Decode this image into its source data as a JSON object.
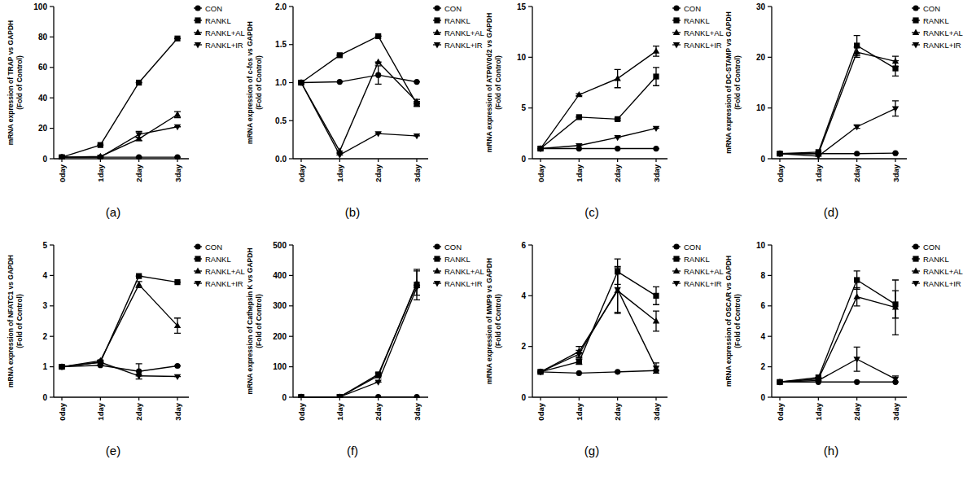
{
  "chart_data": [
    {
      "type": "line",
      "title": "(a)",
      "y_label": "mRNA expression of TRAP vs GAPDH",
      "y_sublabel": "(Fold of Control)",
      "categories": [
        "0day",
        "1day",
        "2day",
        "3day"
      ],
      "ylim": [
        0,
        100
      ],
      "yticks": [
        0,
        20,
        40,
        60,
        80,
        100
      ],
      "legend": "upper right",
      "series": [
        {
          "name": "CON",
          "color": "#000000",
          "marker": "circle",
          "values": [
            1,
            1,
            1,
            1
          ],
          "errors": [
            0,
            0,
            0,
            0
          ]
        },
        {
          "name": "RANKL",
          "color": "#000000",
          "marker": "square",
          "values": [
            1,
            9,
            50,
            79
          ],
          "errors": [
            0,
            0,
            0,
            0
          ]
        },
        {
          "name": "RANKL+AL",
          "color": "#000000",
          "marker": "triangle",
          "values": [
            1,
            1.5,
            13,
            29
          ],
          "errors": [
            0,
            0,
            1,
            2
          ]
        },
        {
          "name": "RANKL+IR",
          "color": "#000000",
          "marker": "triangle_down",
          "values": [
            1,
            1,
            16,
            21
          ],
          "errors": [
            0,
            0,
            2,
            0
          ]
        }
      ]
    },
    {
      "type": "line",
      "title": "(b)",
      "y_label": "mRNA expression of c-fos vs GAPDH",
      "y_sublabel": "(Fold of Control)",
      "categories": [
        "0day",
        "1day",
        "2day",
        "3day"
      ],
      "ylim": [
        0,
        2
      ],
      "yticks": [
        {
          "value": 0,
          "label": "0.0"
        },
        0.5,
        {
          "value": 1,
          "label": "1.0"
        },
        1.5,
        {
          "value": 2,
          "label": "2.0"
        }
      ],
      "legend": "upper right",
      "series": [
        {
          "name": "CON",
          "color": "#000000",
          "marker": "circle",
          "values": [
            1,
            1.01,
            1.1,
            1.01
          ],
          "errors": [
            0,
            0,
            0.12,
            0
          ]
        },
        {
          "name": "RANKL",
          "color": "#000000",
          "marker": "square",
          "values": [
            1,
            1.36,
            1.61,
            0.72
          ],
          "errors": [
            0,
            0,
            0,
            0.03
          ]
        },
        {
          "name": "RANKL+AL",
          "color": "#000000",
          "marker": "triangle",
          "values": [
            1,
            0.1,
            1.27,
            0.75
          ],
          "errors": [
            0,
            0,
            0,
            0.03
          ]
        },
        {
          "name": "RANKL+IR",
          "color": "#000000",
          "marker": "triangle_down",
          "values": [
            1,
            0.05,
            0.33,
            0.3
          ],
          "errors": [
            0,
            0,
            0,
            0
          ]
        }
      ]
    },
    {
      "type": "line",
      "title": "(c)",
      "y_label": "mRNA expression of ATP6V0d2 vs GAPDH",
      "y_sublabel": "(Fold of Control)",
      "categories": [
        "0day",
        "1day",
        "2day",
        "3day"
      ],
      "ylim": [
        0,
        15
      ],
      "yticks": [
        0,
        5,
        10,
        15
      ],
      "legend": "upper right",
      "series": [
        {
          "name": "CON",
          "color": "#000000",
          "marker": "circle",
          "values": [
            1,
            1,
            1,
            1
          ],
          "errors": [
            0,
            0,
            0,
            0
          ]
        },
        {
          "name": "RANKL",
          "color": "#000000",
          "marker": "square",
          "values": [
            1,
            4.1,
            3.9,
            8.1
          ],
          "errors": [
            0,
            0,
            0.1,
            0.9
          ]
        },
        {
          "name": "RANKL+AL",
          "color": "#000000",
          "marker": "triangle",
          "values": [
            1,
            6.3,
            7.9,
            10.6
          ],
          "errors": [
            0,
            0.1,
            0.9,
            0.5
          ]
        },
        {
          "name": "RANKL+IR",
          "color": "#000000",
          "marker": "triangle_down",
          "values": [
            1,
            1.3,
            2.1,
            3
          ],
          "errors": [
            0,
            0,
            0,
            0
          ]
        }
      ]
    },
    {
      "type": "line",
      "title": "(d)",
      "y_label": "mRNA expression of DC-STAMP vs GAPDH",
      "y_sublabel": "(Fold of Control)",
      "categories": [
        "0day",
        "1day",
        "2day",
        "3day"
      ],
      "ylim": [
        0,
        30
      ],
      "yticks": [
        0,
        10,
        20,
        30
      ],
      "legend": "upper right",
      "series": [
        {
          "name": "CON",
          "color": "#000000",
          "marker": "circle",
          "values": [
            1,
            1,
            1,
            1.1
          ],
          "errors": [
            0,
            0,
            0,
            0
          ]
        },
        {
          "name": "RANKL",
          "color": "#000000",
          "marker": "square",
          "values": [
            1,
            1.3,
            22.3,
            17.8
          ],
          "errors": [
            0,
            0,
            2,
            1.5
          ]
        },
        {
          "name": "RANKL+AL",
          "color": "#000000",
          "marker": "triangle",
          "values": [
            1,
            1,
            21,
            19.2
          ],
          "errors": [
            0,
            0,
            1,
            1
          ]
        },
        {
          "name": "RANKL+IR",
          "color": "#000000",
          "marker": "triangle_down",
          "values": [
            1,
            0.5,
            6.3,
            9.9
          ],
          "errors": [
            0,
            0,
            0.3,
            1.5
          ]
        }
      ]
    },
    {
      "type": "line",
      "title": "(e)",
      "y_label": "mRNA expression of NFATC1 vs GAPDH",
      "y_sublabel": "(Fold of Control)",
      "categories": [
        "0day",
        "1day",
        "2day",
        "3day"
      ],
      "ylim": [
        0,
        5
      ],
      "yticks": [
        0,
        1,
        2,
        3,
        4,
        5
      ],
      "legend": "upper right",
      "series": [
        {
          "name": "CON",
          "color": "#000000",
          "marker": "circle",
          "values": [
            1,
            1.05,
            0.85,
            1.03
          ],
          "errors": [
            0,
            0,
            0.25,
            0
          ]
        },
        {
          "name": "RANKL",
          "color": "#000000",
          "marker": "square",
          "values": [
            1,
            1.15,
            3.98,
            3.78
          ],
          "errors": [
            0,
            0,
            0,
            0
          ]
        },
        {
          "name": "RANKL+AL",
          "color": "#000000",
          "marker": "triangle",
          "values": [
            1,
            1.2,
            3.7,
            2.35
          ],
          "errors": [
            0,
            0,
            0.1,
            0.25
          ]
        },
        {
          "name": "RANKL+IR",
          "color": "#000000",
          "marker": "triangle_down",
          "values": [
            1,
            1.15,
            0.7,
            0.68
          ],
          "errors": [
            0,
            0,
            0,
            0
          ]
        }
      ]
    },
    {
      "type": "line",
      "title": "(f)",
      "y_label": "mRNA expression of Cathepsin K vs GAPDH",
      "y_sublabel": "(Fold of Control)",
      "categories": [
        "0day",
        "1day",
        "2day",
        "3day"
      ],
      "ylim": [
        0,
        500
      ],
      "yticks": [
        0,
        100,
        200,
        300,
        400,
        500
      ],
      "legend": "upper right",
      "series": [
        {
          "name": "CON",
          "color": "#000000",
          "marker": "circle",
          "values": [
            1,
            1,
            1,
            1
          ],
          "errors": [
            0,
            0,
            0,
            0
          ]
        },
        {
          "name": "RANKL",
          "color": "#000000",
          "marker": "square",
          "values": [
            1,
            1,
            75,
            370
          ],
          "errors": [
            0,
            0,
            5,
            50
          ]
        },
        {
          "name": "RANKL+AL",
          "color": "#000000",
          "marker": "triangle",
          "values": [
            1,
            1,
            70,
            375
          ],
          "errors": [
            0,
            0,
            0,
            40
          ]
        },
        {
          "name": "RANKL+IR",
          "color": "#000000",
          "marker": "triangle_down",
          "values": [
            1,
            1,
            50,
            360
          ],
          "errors": [
            0,
            0,
            0,
            0
          ]
        }
      ]
    },
    {
      "type": "line",
      "title": "(g)",
      "y_label": "mRNA expression of MMP9 vs GAPDH",
      "y_sublabel": "(Fold of Control)",
      "categories": [
        "0day",
        "1day",
        "2day",
        "3day"
      ],
      "ylim": [
        0,
        6
      ],
      "yticks": [
        0,
        2,
        4,
        6
      ],
      "legend": "upper right",
      "series": [
        {
          "name": "CON",
          "color": "#000000",
          "marker": "circle",
          "values": [
            1,
            0.95,
            1,
            1.05
          ],
          "errors": [
            0,
            0,
            0,
            0
          ]
        },
        {
          "name": "RANKL",
          "color": "#000000",
          "marker": "square",
          "values": [
            1,
            1.4,
            4.95,
            4
          ],
          "errors": [
            0,
            0.1,
            0.5,
            0.35
          ]
        },
        {
          "name": "RANKL+AL",
          "color": "#000000",
          "marker": "triangle",
          "values": [
            1,
            1.8,
            4.2,
            3
          ],
          "errors": [
            0,
            0.2,
            0.9,
            0.4
          ]
        },
        {
          "name": "RANKL+IR",
          "color": "#000000",
          "marker": "triangle_down",
          "values": [
            1,
            1.7,
            4.25,
            1.15
          ],
          "errors": [
            0,
            0.15,
            0.9,
            0.2
          ]
        }
      ]
    },
    {
      "type": "line",
      "title": "(h)",
      "y_label": "mRNA expression of OSCAR vs GAPDH",
      "y_sublabel": "(Fold of Control)",
      "categories": [
        "0day",
        "1day",
        "2day",
        "3day"
      ],
      "ylim": [
        0,
        10
      ],
      "yticks": [
        0,
        2,
        4,
        6,
        8,
        10
      ],
      "legend": "upper right",
      "series": [
        {
          "name": "CON",
          "color": "#000000",
          "marker": "circle",
          "values": [
            1,
            1,
            1,
            1
          ],
          "errors": [
            0,
            0,
            0,
            0
          ]
        },
        {
          "name": "RANKL",
          "color": "#000000",
          "marker": "square",
          "values": [
            1,
            1.3,
            7.7,
            6.1
          ],
          "errors": [
            0,
            0,
            0.6,
            0.9
          ]
        },
        {
          "name": "RANKL+AL",
          "color": "#000000",
          "marker": "triangle",
          "values": [
            1,
            1.2,
            6.6,
            5.9
          ],
          "errors": [
            0,
            0,
            0.6,
            1.8
          ]
        },
        {
          "name": "RANKL+IR",
          "color": "#000000",
          "marker": "triangle_down",
          "values": [
            1,
            1.1,
            2.5,
            1.2
          ],
          "errors": [
            0,
            0,
            0.8,
            0.2
          ]
        }
      ]
    }
  ]
}
